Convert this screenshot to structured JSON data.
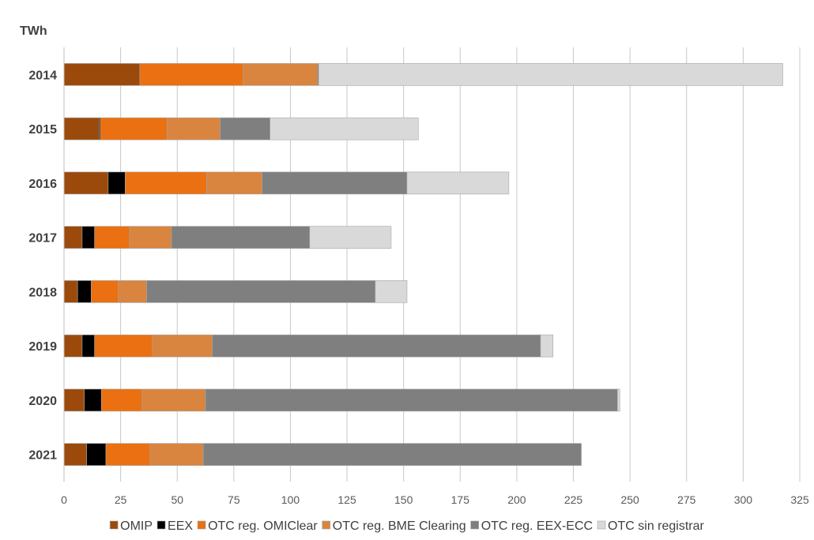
{
  "chart_data": {
    "type": "bar",
    "orientation": "horizontal",
    "stacked": true,
    "title": "",
    "xlabel": "",
    "ylabel": "TWh",
    "xlim": [
      0,
      325
    ],
    "xticks": [
      0,
      25,
      50,
      75,
      100,
      125,
      150,
      175,
      200,
      225,
      250,
      275,
      300,
      325
    ],
    "grid": true,
    "legend": "bottom",
    "categories": [
      "2014",
      "2015",
      "2016",
      "2017",
      "2018",
      "2019",
      "2020",
      "2021"
    ],
    "series": [
      {
        "name": "OMIP",
        "color": "#9b4a0c",
        "values": [
          33.5,
          15.5,
          19.5,
          8,
          6,
          8,
          9,
          10
        ]
      },
      {
        "name": "EEX",
        "color": "#000000",
        "values": [
          0,
          0.5,
          7.5,
          5.5,
          6,
          5.5,
          7.5,
          8.5
        ]
      },
      {
        "name": "OTC reg. OMIClear",
        "color": "#ea7011",
        "values": [
          45.5,
          29.5,
          36,
          15.5,
          12,
          25.5,
          18,
          19.5
        ]
      },
      {
        "name": "OTC reg. BME Clearing",
        "color": "#d9843f",
        "values": [
          33,
          23.5,
          24.5,
          18.5,
          12.5,
          26.5,
          28,
          23.5
        ]
      },
      {
        "name": "OTC reg. EEX-ECC",
        "color": "#7f7f7f",
        "values": [
          0.5,
          22,
          64,
          61,
          101,
          145,
          182,
          167
        ]
      },
      {
        "name": "OTC sin registrar",
        "color": "#d9d9d9",
        "values": [
          205,
          65.5,
          45,
          36,
          14,
          5.5,
          1,
          0
        ]
      }
    ]
  }
}
